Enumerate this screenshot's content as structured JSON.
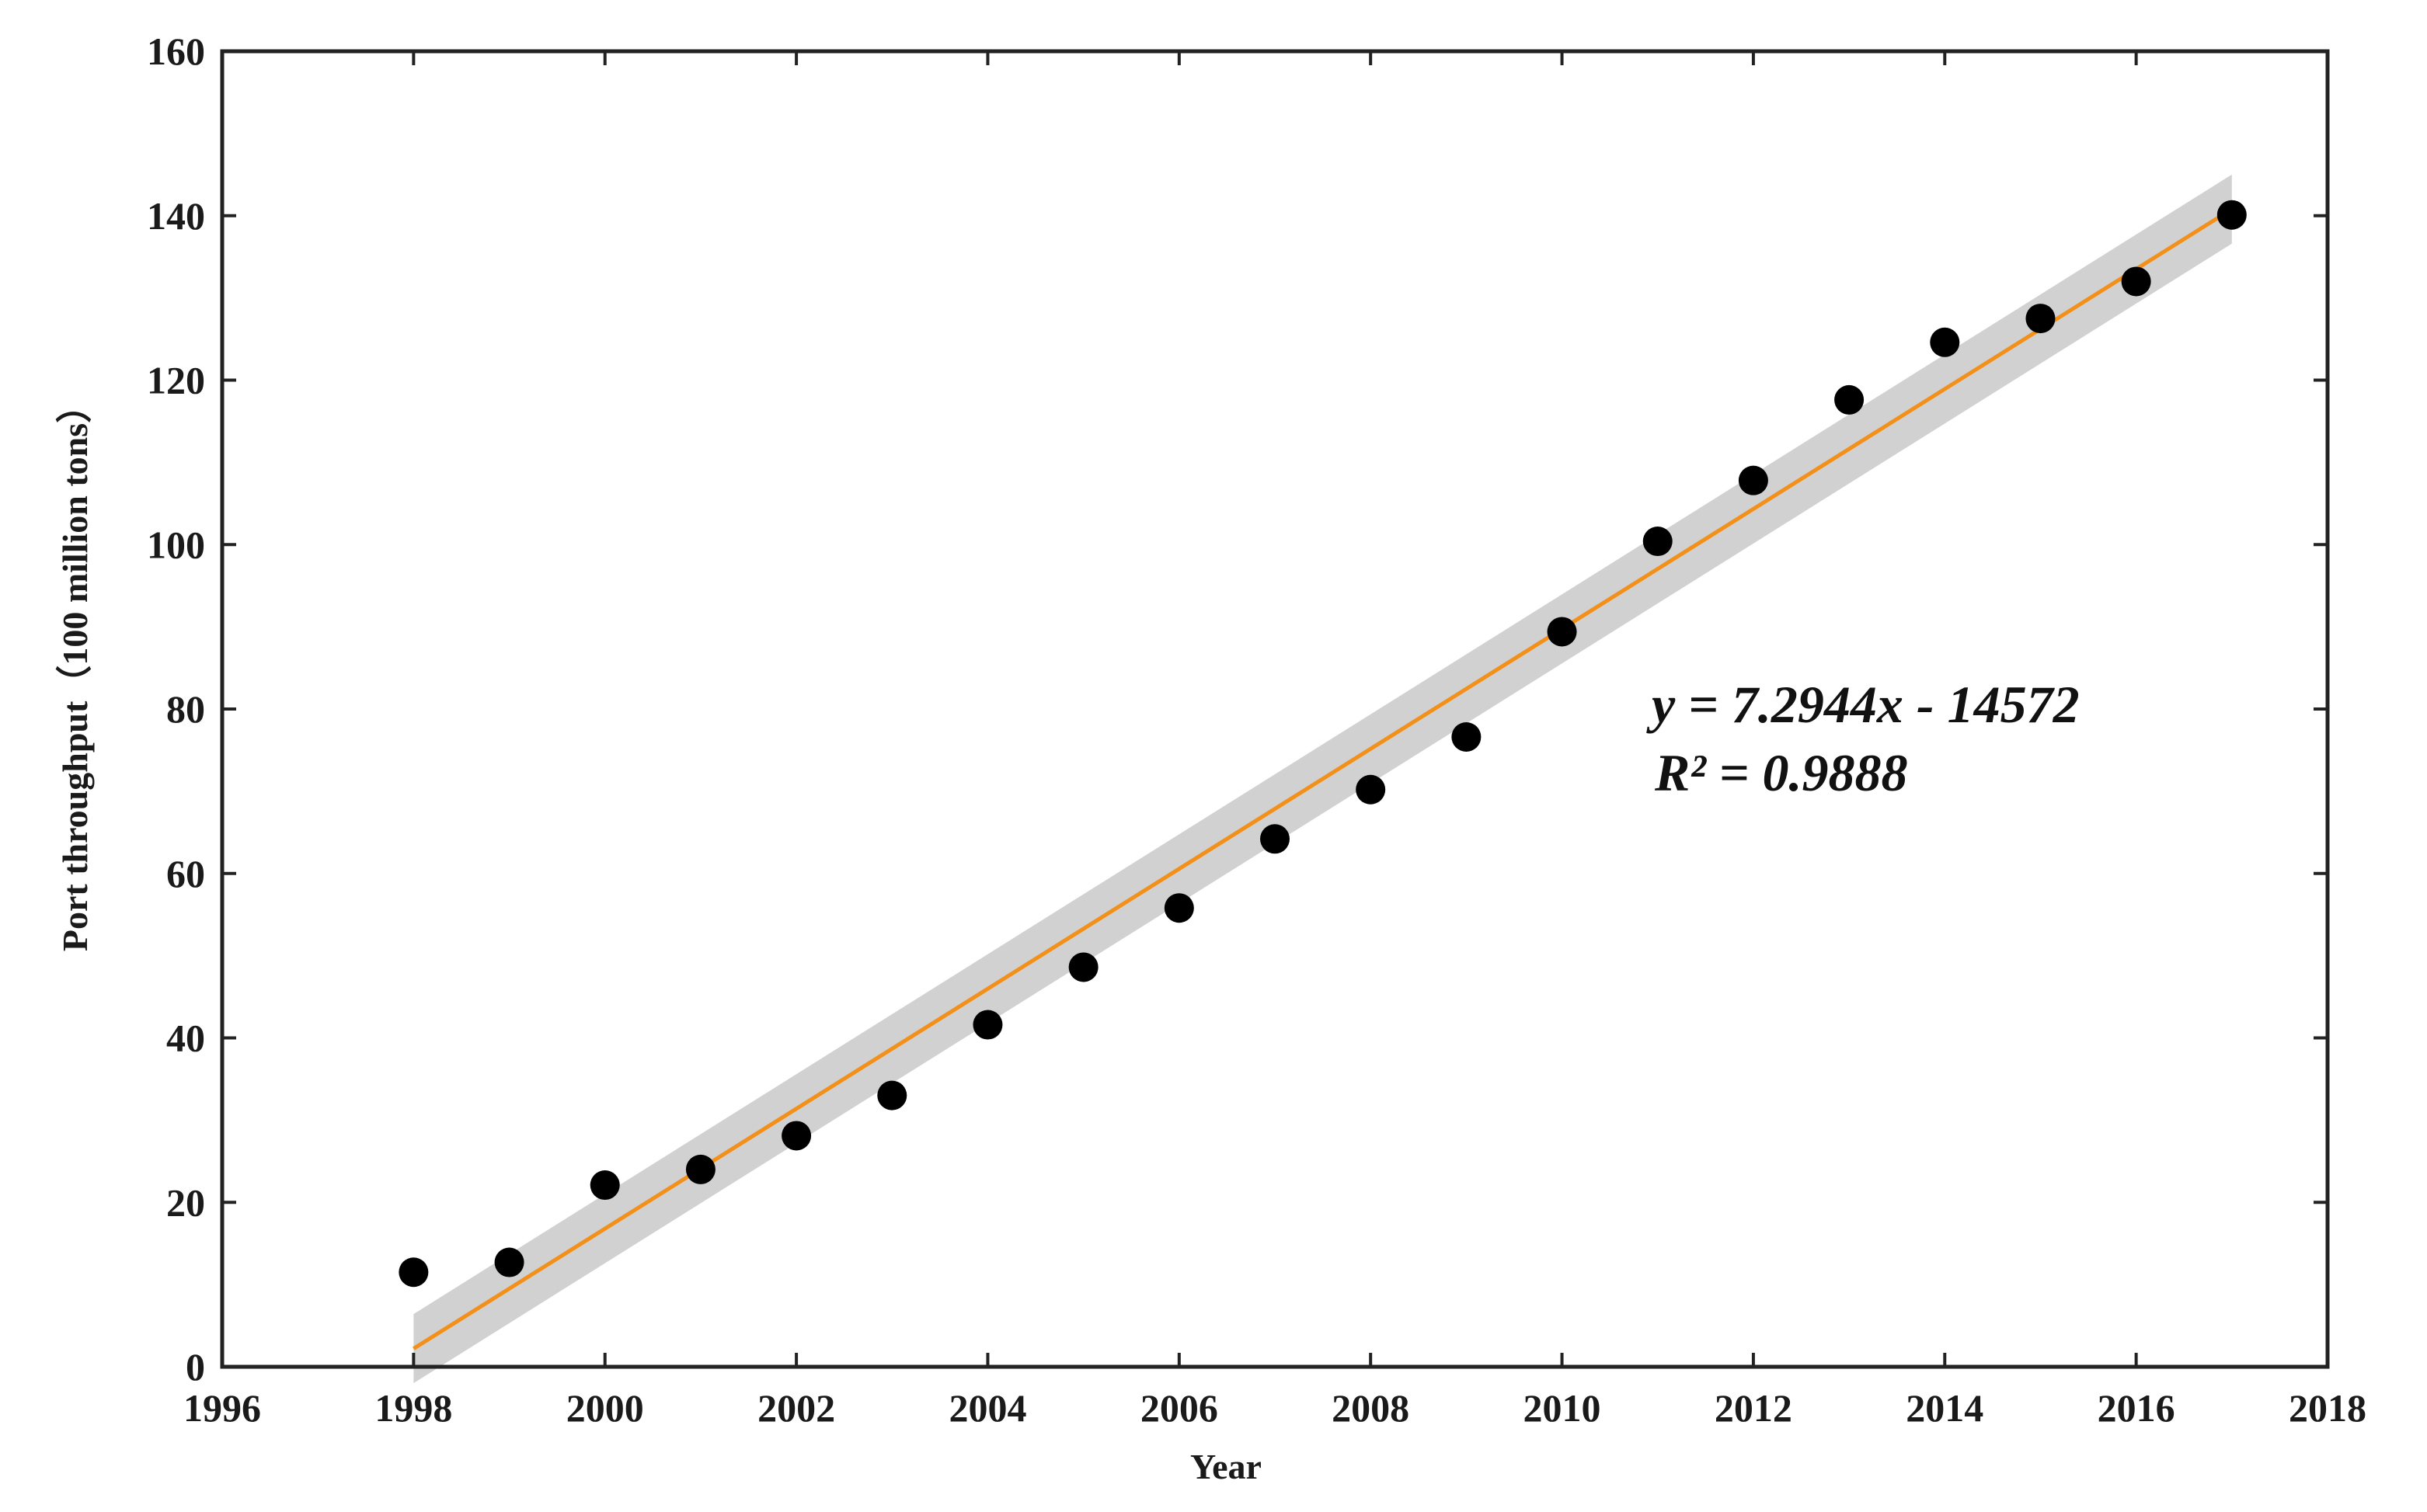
{
  "chart_data": {
    "type": "scatter",
    "title": "",
    "xlabel": "Year",
    "ylabel": "Port throughput（100 million tons）",
    "xlim": [
      1996,
      2018
    ],
    "ylim": [
      0,
      160
    ],
    "xticks": [
      1996,
      1998,
      2000,
      2002,
      2004,
      2006,
      2008,
      2010,
      2012,
      2014,
      2016,
      2018
    ],
    "yticks": [
      0,
      20,
      40,
      60,
      80,
      100,
      120,
      140,
      160
    ],
    "grid": false,
    "series": [
      {
        "name": "Port throughput",
        "kind": "scatter",
        "color": "#000000",
        "x": [
          1998,
          1999,
          2000,
          2001,
          2002,
          2003,
          2004,
          2005,
          2006,
          2007,
          2008,
          2009,
          2010,
          2011,
          2012,
          2013,
          2014,
          2015,
          2016,
          2017
        ],
        "y": [
          11.5,
          12.7,
          22.1,
          24.0,
          28.1,
          33.0,
          41.6,
          48.6,
          55.8,
          64.2,
          70.2,
          76.6,
          89.4,
          100.4,
          107.8,
          117.6,
          124.6,
          127.5,
          132.0,
          140.1
        ]
      }
    ],
    "trendline": {
      "type": "linear",
      "slope": 7.2944,
      "intercept": -14572,
      "x_range": [
        1998,
        2017
      ],
      "color": "#F39019",
      "band_color": "#CCCCCC",
      "band_half_width": 4.2,
      "equation_text": "y = 7.2944x - 14572",
      "r2_text": "R² = 0.9888"
    }
  }
}
